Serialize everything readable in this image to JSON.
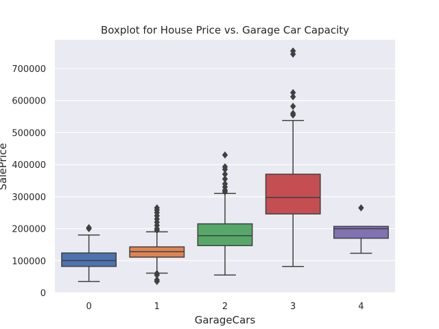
{
  "chart_data": {
    "type": "box",
    "title": "Boxplot for House Price vs. Garage Car Capacity",
    "xlabel": "GarageCars",
    "ylabel": "SalePrice",
    "ylim": [
      0,
      790000
    ],
    "yticks": [
      0,
      100000,
      200000,
      300000,
      400000,
      500000,
      600000,
      700000
    ],
    "grid": true,
    "background": "#eaeaf2",
    "categories": [
      "0",
      "1",
      "2",
      "3",
      "4"
    ],
    "boxes": [
      {
        "category": "0",
        "color": "#4c72b0",
        "whisker_low": 35000,
        "q1": 82000,
        "median": 100000,
        "q3": 124000,
        "whisker_high": 180000,
        "outliers": [
          200000,
          203000
        ]
      },
      {
        "category": "1",
        "color": "#dd8452",
        "whisker_low": 61000,
        "q1": 111000,
        "median": 128000,
        "q3": 143000,
        "whisker_high": 190000,
        "outliers": [
          35000,
          40000,
          55000,
          60000,
          195000,
          200000,
          210000,
          220000,
          230000,
          240000,
          250000,
          258000,
          265000
        ]
      },
      {
        "category": "2",
        "color": "#55a868",
        "whisker_low": 55000,
        "q1": 147000,
        "median": 178000,
        "q3": 215000,
        "whisker_high": 310000,
        "outliers": [
          315000,
          320000,
          330000,
          340000,
          355000,
          370000,
          385000,
          393000,
          430000
        ]
      },
      {
        "category": "3",
        "color": "#c44e52",
        "whisker_low": 82000,
        "q1": 246000,
        "median": 297000,
        "q3": 370000,
        "whisker_high": 538000,
        "outliers": [
          555000,
          560000,
          582000,
          612000,
          625000,
          745000,
          755000
        ]
      },
      {
        "category": "4",
        "color": "#8172b3",
        "whisker_low": 123000,
        "q1": 170000,
        "median": 200000,
        "q3": 207000,
        "whisker_high": 207000,
        "outliers": [
          265000
        ]
      }
    ]
  }
}
